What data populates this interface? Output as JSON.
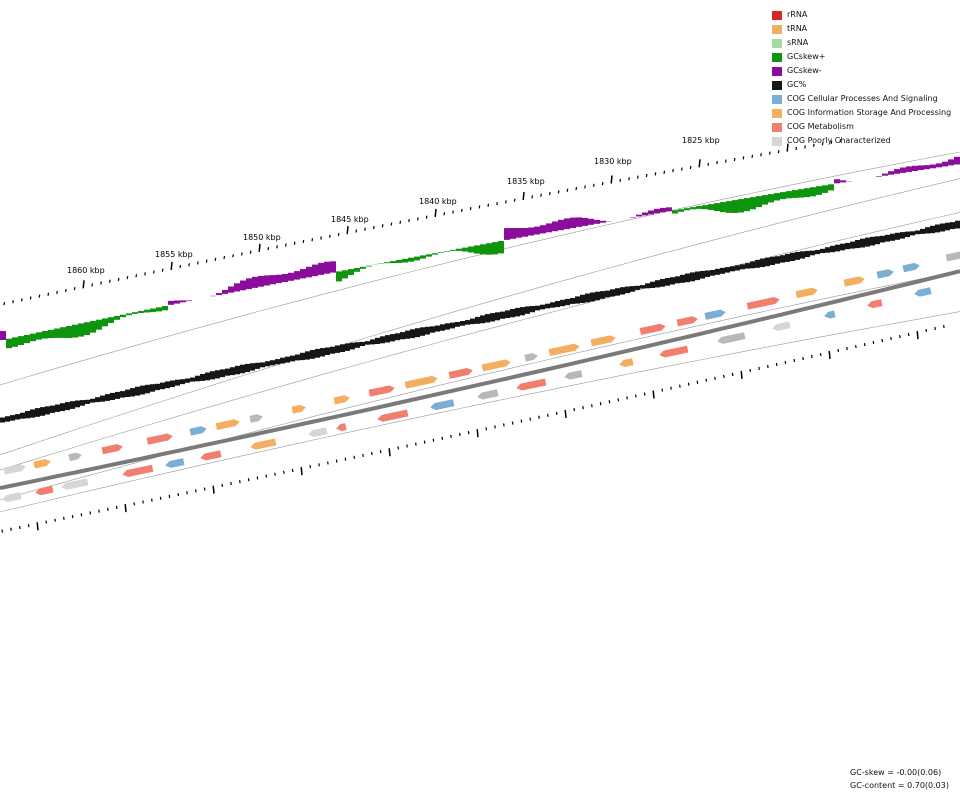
{
  "legend": [
    {
      "label": "rRNA",
      "color": "#d62728",
      "icon": "red-square"
    },
    {
      "label": "tRNA",
      "color": "#f5ad60",
      "icon": "orange-square"
    },
    {
      "label": "sRNA",
      "color": "#a8d99a",
      "icon": "light-green-square"
    },
    {
      "label": "GCskew+",
      "color": "#0f940f",
      "icon": "green-square"
    },
    {
      "label": "GCskew-",
      "color": "#8b0d9b",
      "icon": "purple-square"
    },
    {
      "label": "GC%",
      "color": "#161616",
      "icon": "black-square"
    },
    {
      "label": "COG Cellular Processes And Signaling",
      "color": "#7aaed4",
      "icon": "blue-square"
    },
    {
      "label": "COG Information Storage And Processing",
      "color": "#f5ad60",
      "icon": "orange-square"
    },
    {
      "label": "COG Metabolism",
      "color": "#f07f70",
      "icon": "salmon-square"
    },
    {
      "label": "COG Poorly Characterized",
      "color": "#d6d6d6",
      "icon": "grey-square"
    }
  ],
  "tick_labels": [
    "1860 kbp",
    "1855 kbp",
    "1850 kbp",
    "1845 kbp",
    "1840 kbp",
    "1835 kbp",
    "1830 kbp",
    "1825 kbp"
  ],
  "stats": {
    "gc_skew": "GC-skew = -0.00(0.06)",
    "gc_content": "GC-content = 0.70(0.03)"
  },
  "colors": {
    "gc_skew_pos": "#0f940f",
    "gc_skew_neg": "#8b0d9b",
    "gc_content": "#161616",
    "backbone": "#7a7a7a",
    "guide_line": "#9a9a9a",
    "tick": "#000000"
  }
}
